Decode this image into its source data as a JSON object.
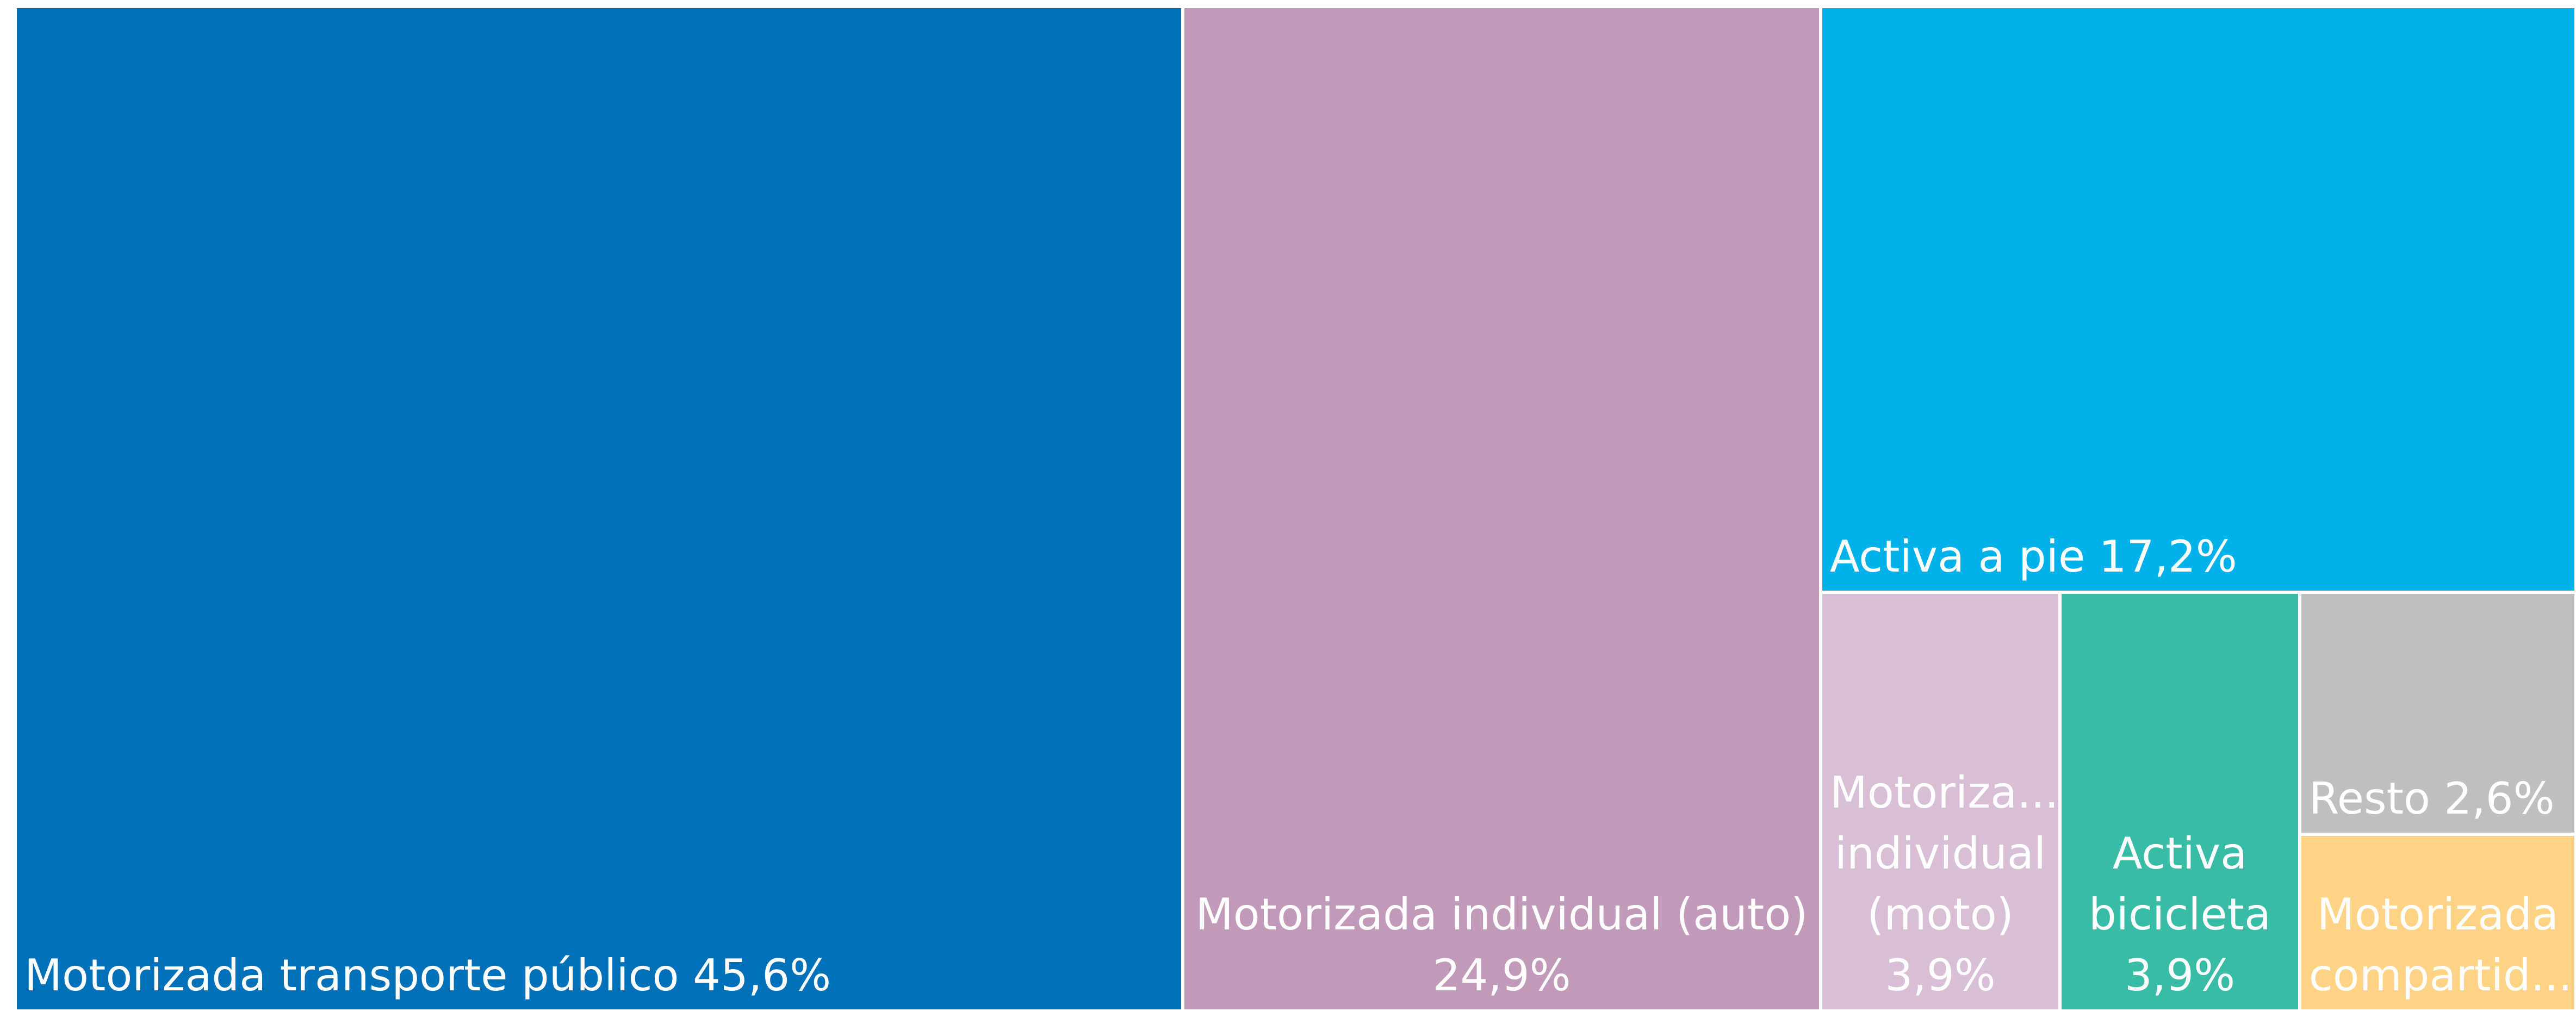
{
  "chart_data": {
    "type": "treemap",
    "categories": [
      "Motorizada transporte público",
      "Motorizada individual (auto)",
      "Activa a pie",
      "Motoriza... individual (moto)",
      "Activa bicicleta",
      "Resto",
      "Motorizada compartid..."
    ],
    "values": [
      45.6,
      24.9,
      17.2,
      3.9,
      3.9,
      2.6,
      1.9
    ],
    "value_labels": [
      "45,6%",
      "24,9%",
      "17,2%",
      "3,9%",
      "3,9%",
      "2,6%",
      null
    ],
    "colors": [
      "#0070b8",
      "#c199b9",
      "#00b2e9",
      "#d9bfd6",
      "#38bca6",
      "#bfbfbf",
      "#ffd386"
    ]
  }
}
